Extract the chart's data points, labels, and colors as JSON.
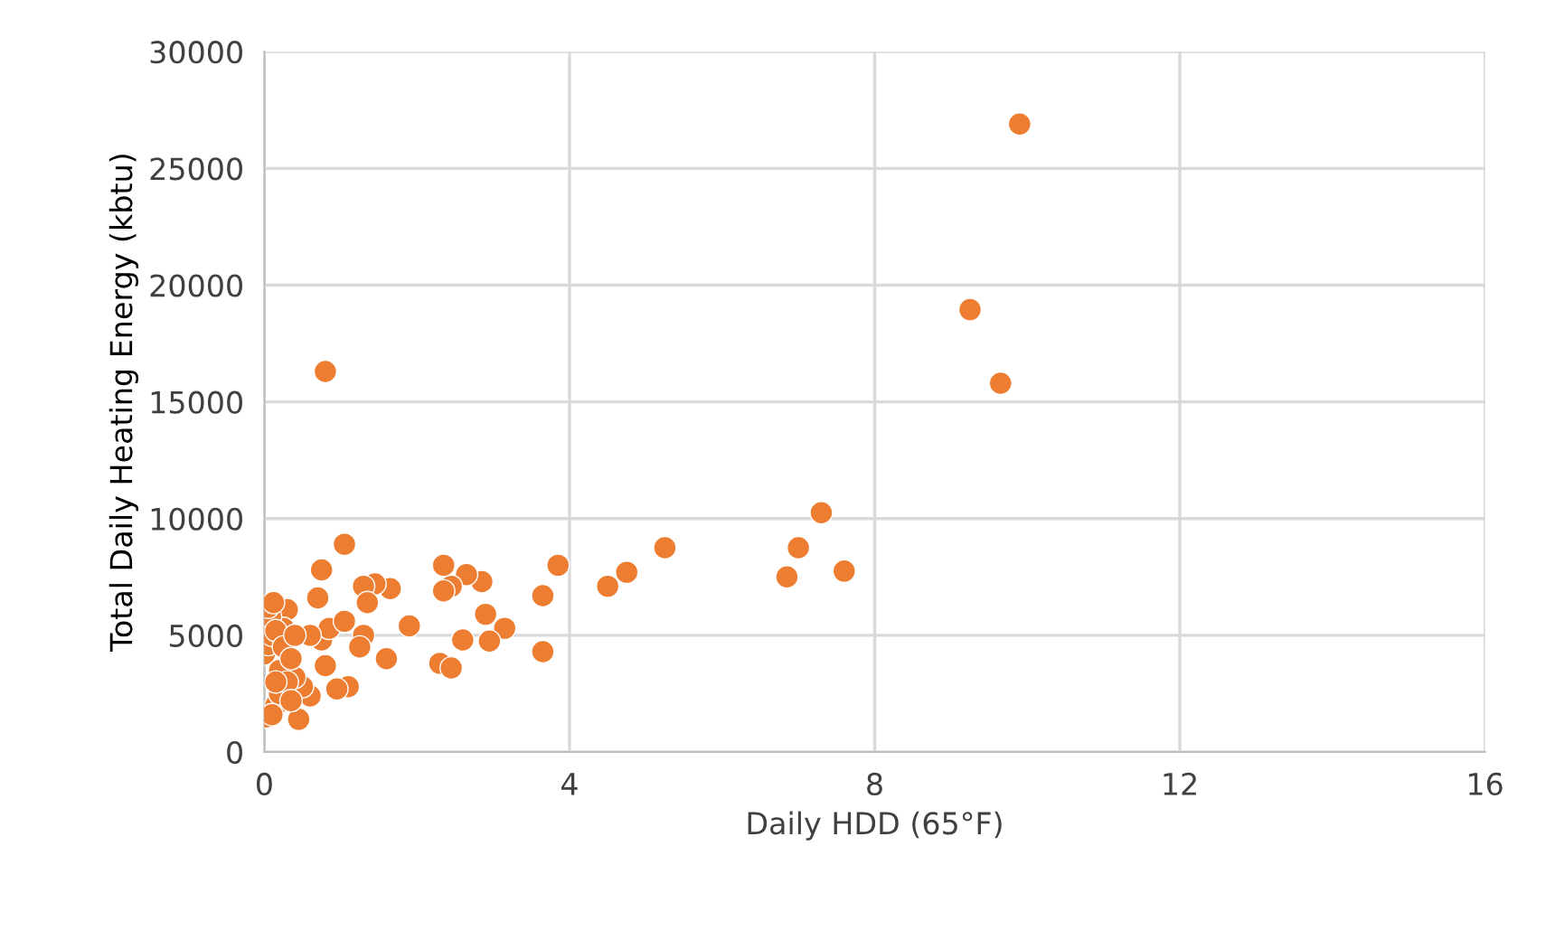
{
  "chart_data": {
    "type": "scatter",
    "xlabel": "Daily HDD (65°F)",
    "ylabel": "Total Daily Heating Energy (kbtu)",
    "xlim": [
      0,
      16
    ],
    "xticks": [
      0,
      4,
      8,
      12,
      16
    ],
    "ylim": [
      0,
      30000
    ],
    "yticks": [
      0,
      5000,
      10000,
      15000,
      20000,
      25000,
      30000
    ],
    "grid": true,
    "marker": "circle",
    "series": [
      {
        "color": "#ed7d31",
        "x": [
          9.9,
          9.25,
          9.65,
          0.8,
          7.3,
          7.0,
          6.85,
          7.6,
          5.25,
          4.75,
          4.5,
          3.85,
          3.65,
          3.65,
          3.15,
          2.95,
          2.9,
          2.85,
          2.65,
          2.6,
          2.45,
          2.35,
          2.35,
          2.3,
          2.45,
          1.9,
          1.65,
          1.6,
          1.45,
          1.3,
          1.35,
          1.3,
          1.25,
          1.05,
          1.1,
          0.95,
          0.75,
          0.7,
          0.75,
          0.8,
          0.85,
          1.05,
          0.6,
          0.6,
          0.45,
          0.5,
          0.4,
          0.3,
          0.25,
          0.02,
          0.0,
          0.05,
          0.1,
          0.08,
          0.05,
          0.12,
          0.15,
          0.15,
          0.2,
          0.2,
          0.25,
          0.3,
          0.35,
          0.35,
          0.4,
          0.1,
          0.15
        ],
        "values": [
          26900,
          18950,
          15800,
          16300,
          10250,
          8750,
          7500,
          7750,
          8750,
          7700,
          7100,
          8000,
          6700,
          4300,
          5300,
          4750,
          5900,
          7300,
          7600,
          4800,
          7100,
          8000,
          6900,
          3800,
          3600,
          5400,
          7000,
          4000,
          7200,
          7100,
          6400,
          5000,
          4500,
          8900,
          2800,
          2700,
          7800,
          6600,
          4800,
          3700,
          5300,
          5600,
          5000,
          2400,
          1400,
          2800,
          3200,
          6100,
          5300,
          1500,
          4200,
          4600,
          5000,
          5800,
          6200,
          6400,
          5200,
          2000,
          2500,
          3500,
          4500,
          3000,
          2200,
          4000,
          5000,
          1600,
          3000
        ]
      }
    ]
  }
}
